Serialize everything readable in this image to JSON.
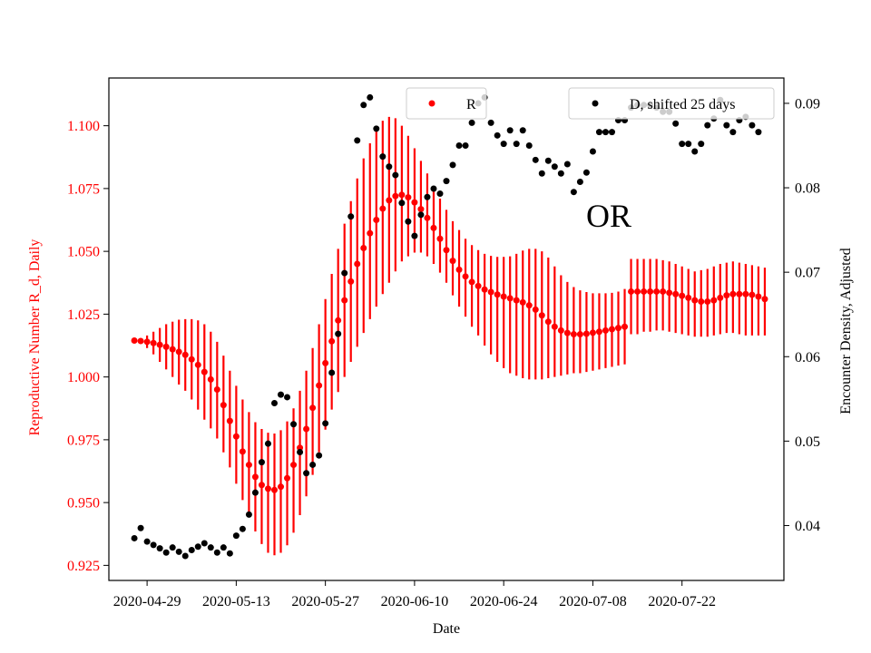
{
  "chart_data": {
    "type": "scatter",
    "xlabel": "Date",
    "ylabel_left": "Reproductive Number R_d, Daily",
    "ylabel_right": "Encounter Density, Adjusted",
    "annotation": "OR",
    "colors": {
      "R": "#ff0000",
      "D": "#000000",
      "left_axis": "#ff0000",
      "right_axis": "#000000"
    },
    "grid": false,
    "legend_placement": "top",
    "x_range": [
      "2020-04-23",
      "2020-08-07"
    ],
    "x_ticks": [
      "2020-04-29",
      "2020-05-13",
      "2020-05-27",
      "2020-06-10",
      "2020-06-24",
      "2020-07-08",
      "2020-07-22"
    ],
    "y_left_range": [
      0.919,
      1.119
    ],
    "y_left_ticks": [
      "0.925",
      "0.950",
      "0.975",
      "1.000",
      "1.025",
      "1.050",
      "1.075",
      "1.100"
    ],
    "y_right_range": [
      0.0335,
      0.093
    ],
    "y_right_ticks": [
      "0.04",
      "0.05",
      "0.06",
      "0.07",
      "0.08",
      "0.09"
    ],
    "series_R": {
      "name": "R",
      "start_date": "2020-04-27",
      "values": [
        1.0145,
        1.0143,
        1.014,
        1.0135,
        1.0128,
        1.012,
        1.011,
        1.01,
        1.0088,
        1.007,
        1.0048,
        1.002,
        0.999,
        0.995,
        0.9888,
        0.9825,
        0.9763,
        0.9703,
        0.965,
        0.9602,
        0.957,
        0.9555,
        0.955,
        0.9563,
        0.9597,
        0.965,
        0.9718,
        0.9793,
        0.9877,
        0.9966,
        1.0055,
        1.0142,
        1.0225,
        1.0305,
        1.038,
        1.045,
        1.0513,
        1.0572,
        1.0625,
        1.067,
        1.0703,
        1.072,
        1.0725,
        1.0715,
        1.0695,
        1.0668,
        1.0633,
        1.0593,
        1.055,
        1.0505,
        1.0462,
        1.0427,
        1.04,
        1.0378,
        1.0362,
        1.0348,
        1.0338,
        1.0328,
        1.032,
        1.0313,
        1.0305,
        1.0297,
        1.0285,
        1.0268,
        1.0245,
        1.022,
        1.02,
        1.0185,
        1.0175,
        1.017,
        1.017,
        1.0172,
        1.0176,
        1.018,
        1.0185,
        1.019,
        1.0195,
        1.02,
        1.034,
        1.034,
        1.034,
        1.034,
        1.034,
        1.034,
        1.0335,
        1.033,
        1.0323,
        1.0315,
        1.0305,
        1.03,
        1.03,
        1.0305,
        1.0315,
        1.0325,
        1.033,
        1.033,
        1.033,
        1.0327,
        1.032,
        1.031
      ],
      "error_upper": [
        1.0145,
        1.0145,
        1.0165,
        1.018,
        1.0195,
        1.021,
        1.022,
        1.0228,
        1.023,
        1.023,
        1.0225,
        1.021,
        1.018,
        1.014,
        1.0085,
        1.0025,
        0.9965,
        0.991,
        0.986,
        0.982,
        0.9793,
        0.9778,
        0.9775,
        0.9788,
        0.9823,
        0.9875,
        0.9945,
        1.0025,
        1.0115,
        1.021,
        1.031,
        1.041,
        1.051,
        1.061,
        1.07,
        1.079,
        1.087,
        1.093,
        1.098,
        1.102,
        1.1035,
        1.103,
        1.1,
        1.096,
        1.091,
        1.086,
        1.081,
        1.076,
        1.071,
        1.0665,
        1.062,
        1.0585,
        1.055,
        1.0525,
        1.0505,
        1.049,
        1.0482,
        1.0478,
        1.0478,
        1.048,
        1.049,
        1.0503,
        1.051,
        1.051,
        1.05,
        1.0475,
        1.044,
        1.0405,
        1.0378,
        1.0358,
        1.0345,
        1.0338,
        1.0333,
        1.0333,
        1.0333,
        1.0335,
        1.034,
        1.035,
        1.047,
        1.047,
        1.047,
        1.047,
        1.047,
        1.0465,
        1.046,
        1.045,
        1.044,
        1.043,
        1.042,
        1.0425,
        1.043,
        1.044,
        1.045,
        1.0455,
        1.046,
        1.0455,
        1.045,
        1.0445,
        1.044,
        1.0435
      ],
      "error_lower": [
        1.0145,
        1.014,
        1.0115,
        1.009,
        1.006,
        1.003,
        1.0,
        0.997,
        0.9945,
        0.991,
        0.987,
        0.983,
        0.9795,
        0.9755,
        0.97,
        0.964,
        0.9575,
        0.951,
        0.9445,
        0.9385,
        0.9335,
        0.93,
        0.929,
        0.93,
        0.933,
        0.938,
        0.945,
        0.9525,
        0.961,
        0.97,
        0.979,
        0.987,
        0.994,
        1.0,
        1.006,
        1.012,
        1.0175,
        1.023,
        1.028,
        1.033,
        1.0375,
        1.042,
        1.046,
        1.048,
        1.0495,
        1.0495,
        1.048,
        1.045,
        1.0415,
        1.0375,
        1.0325,
        1.028,
        1.024,
        1.02,
        1.0165,
        1.0125,
        1.009,
        1.006,
        1.0035,
        1.0015,
        1.0005,
        0.9995,
        0.999,
        0.999,
        0.999,
        0.9995,
        1.0,
        1.0005,
        1.001,
        1.0015,
        1.0015,
        1.002,
        1.0025,
        1.003,
        1.0035,
        1.004,
        1.0045,
        1.005,
        1.017,
        1.017,
        1.018,
        1.018,
        1.0185,
        1.0185,
        1.018,
        1.0175,
        1.017,
        1.0165,
        1.016,
        1.016,
        1.016,
        1.0165,
        1.017,
        1.0175,
        1.0175,
        1.017,
        1.0165,
        1.0165,
        1.0165,
        1.0165
      ]
    },
    "series_D": {
      "name": "D, shifted 25 days",
      "start_date": "2020-04-27",
      "values": [
        0.0385,
        0.0397,
        0.0381,
        0.0377,
        0.0373,
        0.0368,
        0.0374,
        0.0369,
        0.0364,
        0.0371,
        0.0375,
        0.0379,
        0.0374,
        0.0368,
        0.0374,
        0.0367,
        0.0388,
        0.0396,
        0.0413,
        0.0439,
        0.0475,
        0.0497,
        0.0545,
        0.0555,
        0.0552,
        0.052,
        0.0487,
        0.0462,
        0.0472,
        0.0483,
        0.0521,
        0.0581,
        0.0627,
        0.0699,
        0.0766,
        0.0856,
        0.0898,
        0.0907,
        0.087,
        0.0837,
        0.0825,
        0.0815,
        0.0782,
        0.076,
        0.0743,
        0.0768,
        0.0789,
        0.0799,
        0.0793,
        0.0808,
        0.0827,
        0.085,
        0.085,
        0.0877,
        0.09,
        0.0907,
        0.0877,
        0.0862,
        0.0852,
        0.0868,
        0.0852,
        0.0868,
        0.085,
        0.0833,
        0.0817,
        0.0832,
        0.0825,
        0.0817,
        0.0828,
        0.0795,
        0.0807,
        0.0818,
        0.0843,
        0.0866,
        0.0866,
        0.0866,
        0.088,
        0.088,
        0.0895,
        0.0898,
        0.0898,
        0.0898,
        0.0895,
        0.089,
        0.089,
        0.0876,
        0.0852,
        0.0852,
        0.0843,
        0.0852,
        0.0874,
        0.0882,
        0.0904,
        0.0874,
        0.0866,
        0.088,
        0.0884,
        0.0874,
        0.0866
      ]
    }
  }
}
